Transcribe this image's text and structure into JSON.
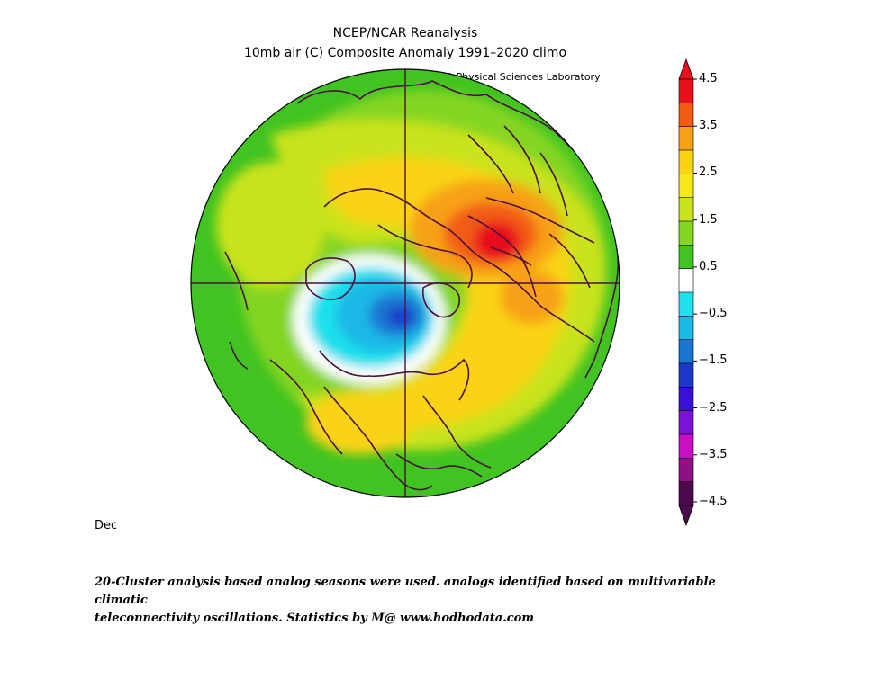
{
  "header": {
    "title": "NCEP/NCAR Reanalysis",
    "subtitle": "10mb air (C) Composite Anomaly 1991–2020 climo",
    "credit": "NOAA Physical Sciences Laboratory"
  },
  "map": {
    "projection": "north-polar-stereographic",
    "variable": "10mb air temperature anomaly",
    "features": [
      {
        "name": "warm-core-siberia",
        "anomaly_max": 4.0
      },
      {
        "name": "cold-core-canadian-arctic",
        "anomaly_min": -1.6
      }
    ],
    "land_outline_color": "#4a1040"
  },
  "colorbar": {
    "ticks": [
      "4.5",
      "3.5",
      "2.5",
      "1.5",
      "0.5",
      "−0.5",
      "−1.5",
      "−2.5",
      "−3.5",
      "−4.5"
    ],
    "colors": [
      "#e8111a",
      "#f25b14",
      "#f7a118",
      "#fad312",
      "#f6e91a",
      "#c9e31c",
      "#84d521",
      "#41c321",
      "#ffffff",
      "#1fe0ec",
      "#1cb8e6",
      "#1a75d0",
      "#1d38c8",
      "#3b10d6",
      "#7a12d8",
      "#c80fc4",
      "#8e0f86",
      "#4a0a4c"
    ]
  },
  "footer": {
    "month": "Dec",
    "caption_line1": "20-Cluster analysis based analog seasons were used. analogs identified based on multivariable climatic",
    "caption_line2": "teleconnectivity oscillations. Statistics by M@ www.hodhodata.com"
  }
}
